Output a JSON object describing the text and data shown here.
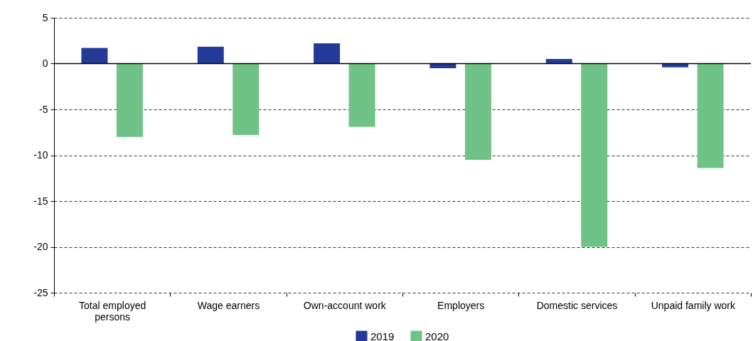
{
  "chart_data": {
    "type": "bar",
    "categories": [
      "Total employed persons",
      "Wage earners",
      "Own-account work",
      "Employers",
      "Domestic services",
      "Unpaid family work"
    ],
    "series": [
      {
        "name": "2019",
        "color": "#233a96",
        "values": [
          1.7,
          1.85,
          2.2,
          -0.5,
          0.5,
          -0.4
        ]
      },
      {
        "name": "2020",
        "color": "#6fc387",
        "values": [
          -8.0,
          -7.8,
          -6.9,
          -10.5,
          -20.0,
          -11.4
        ]
      }
    ],
    "ylim": [
      -25,
      5
    ],
    "yticks": [
      -25,
      -20,
      -15,
      -10,
      -5,
      0,
      5
    ],
    "grid": "y",
    "legend": "bottom"
  }
}
